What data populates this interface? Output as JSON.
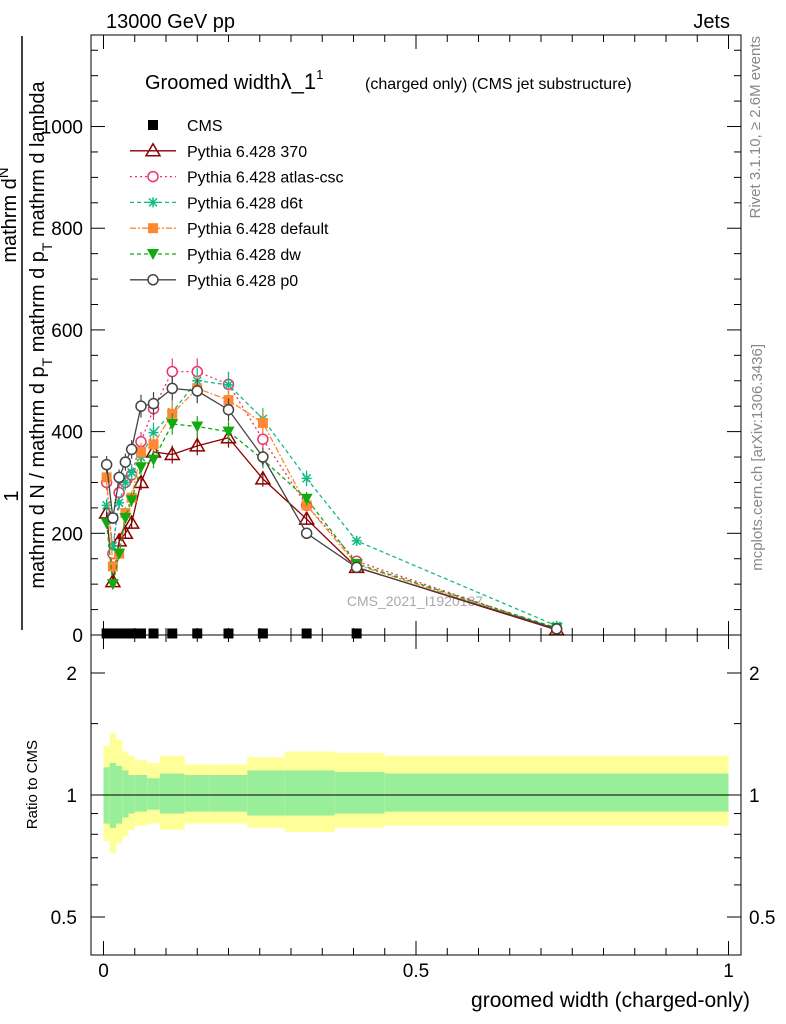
{
  "header": {
    "left": "13000 GeV pp",
    "right": "Jets",
    "side_top": "Rivet 3.1.10, ≥ 2.6M events",
    "side_bottom": "mcplots.cern.ch [arXiv:1306.3436]"
  },
  "chart_data": [
    {
      "type": "line",
      "title_main": "Groomed width",
      "title_symbol": "λ_1",
      "title_sup": "1",
      "title_note": "(charged only) (CMS jet substructure)",
      "watermark": "CMS_2021_I1920187",
      "ylabel_top": "1",
      "ylabel_num": "mathrm d",
      "ylabel_num2": "N",
      "ylabel_den": "mathrm d N / mathrm d p",
      "ylabel_sub": "T",
      "ylabel_den2": " mathrm d p",
      "ylabel_sub2": "T",
      "ylabel_den3": " mathrm d lambda",
      "xlim": [
        -0.02,
        1.02
      ],
      "ylim": [
        0,
        1180
      ],
      "y_ticks": [
        "0",
        "200",
        "400",
        "600",
        "800",
        "1000"
      ],
      "legend_placement": "top-left",
      "x": [
        0.005,
        0.015,
        0.025,
        0.035,
        0.045,
        0.06,
        0.08,
        0.11,
        0.15,
        0.2,
        0.255,
        0.325,
        0.405,
        0.725
      ],
      "series": [
        {
          "name": "CMS",
          "color": "#000000",
          "marker": "square-filled",
          "dash": "none",
          "values": [
            3,
            3,
            3,
            3,
            3,
            3,
            3,
            3,
            3,
            3,
            3,
            3,
            3,
            null
          ]
        },
        {
          "name": "Pythia 6.428 370",
          "color": "#8b0000",
          "marker": "triangle-open",
          "dash": "solid",
          "values": [
            240,
            105,
            185,
            200,
            220,
            300,
            360,
            355,
            372,
            388,
            307,
            228,
            133,
            10
          ]
        },
        {
          "name": "Pythia 6.428 atlas-csc",
          "color": "#ee3366",
          "marker": "circle-open",
          "dash": "2,3",
          "values": [
            300,
            160,
            280,
            300,
            315,
            380,
            445,
            518,
            518,
            493,
            385,
            255,
            145,
            12
          ]
        },
        {
          "name": "Pythia 6.428 d6t",
          "color": "#11bb88",
          "marker": "star",
          "dash": "4,3",
          "values": [
            255,
            175,
            260,
            300,
            320,
            350,
            398,
            438,
            500,
            492,
            425,
            308,
            185,
            18
          ]
        },
        {
          "name": "Pythia 6.428 default",
          "color": "#ff8833",
          "marker": "square-filled",
          "dash": "6,2,2,2",
          "values": [
            310,
            135,
            160,
            240,
            270,
            360,
            375,
            435,
            485,
            462,
            417,
            255,
            138,
            12
          ]
        },
        {
          "name": "Pythia 6.428 dw",
          "color": "#11aa11",
          "marker": "triangle-down-filled",
          "dash": "4,3",
          "values": [
            220,
            100,
            160,
            230,
            265,
            330,
            345,
            415,
            410,
            400,
            345,
            268,
            140,
            14
          ]
        },
        {
          "name": "Pythia 6.428 p0",
          "color": "#444444",
          "marker": "circle-open",
          "dash": "solid",
          "values": [
            335,
            230,
            310,
            340,
            365,
            450,
            455,
            485,
            480,
            443,
            350,
            200,
            133,
            12
          ]
        }
      ]
    },
    {
      "type": "area",
      "ylabel": "Ratio to CMS",
      "xlabel": "groomed width (charged-only)",
      "x_ticks": [
        "0",
        "0.5",
        "1"
      ],
      "y_ticks": [
        "0.5",
        "1",
        "2"
      ],
      "x_edges": [
        0.0,
        0.01,
        0.02,
        0.03,
        0.04,
        0.05,
        0.07,
        0.09,
        0.13,
        0.17,
        0.23,
        0.29,
        0.37,
        0.45,
        1.0
      ],
      "band_inner_color": "#99ee99",
      "band_outer_color": "#ffff99",
      "inner_upper": [
        1.17,
        1.2,
        1.18,
        1.15,
        1.12,
        1.12,
        1.1,
        1.13,
        1.12,
        1.12,
        1.15,
        1.15,
        1.14,
        1.13
      ],
      "inner_lower": [
        0.85,
        0.83,
        0.85,
        0.88,
        0.9,
        0.91,
        0.92,
        0.9,
        0.91,
        0.91,
        0.89,
        0.89,
        0.9,
        0.91
      ],
      "outer_upper": [
        1.32,
        1.42,
        1.37,
        1.28,
        1.25,
        1.22,
        1.2,
        1.25,
        1.19,
        1.19,
        1.24,
        1.28,
        1.27,
        1.25
      ],
      "outer_lower": [
        0.77,
        0.72,
        0.76,
        0.79,
        0.82,
        0.84,
        0.85,
        0.82,
        0.85,
        0.85,
        0.83,
        0.81,
        0.83,
        0.84
      ]
    }
  ]
}
